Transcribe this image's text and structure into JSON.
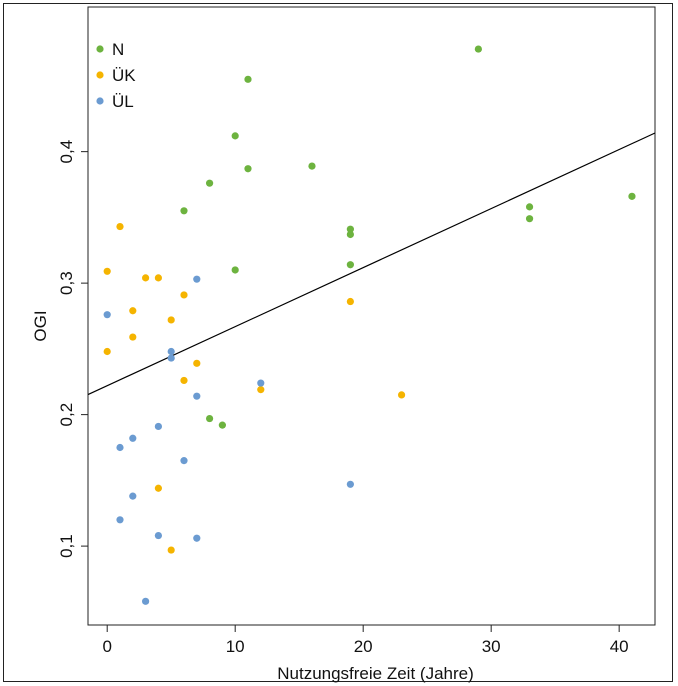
{
  "chart_data": {
    "type": "scatter",
    "title": "",
    "xlabel": "Nutzungsfreie Zeit (Jahre)",
    "ylabel": "OGI",
    "xlim": [
      -1.5,
      42.8
    ],
    "ylim": [
      0.04,
      0.51
    ],
    "x_ticks": [
      0,
      10,
      20,
      30,
      40
    ],
    "x_tick_labels": [
      "0",
      "10",
      "20",
      "30",
      "40"
    ],
    "y_ticks": [
      0.1,
      0.2,
      0.3,
      0.4
    ],
    "y_tick_labels": [
      "0,1",
      "0,2",
      "0,3",
      "0,4"
    ],
    "legend_position": "top-left",
    "grid": false,
    "series": [
      {
        "name": "N",
        "color": "#6db33f",
        "points": [
          [
            6,
            0.355
          ],
          [
            8,
            0.376
          ],
          [
            8,
            0.197
          ],
          [
            9,
            0.192
          ],
          [
            10,
            0.412
          ],
          [
            10,
            0.31
          ],
          [
            11,
            0.455
          ],
          [
            11,
            0.387
          ],
          [
            16,
            0.389
          ],
          [
            19,
            0.341
          ],
          [
            19,
            0.337
          ],
          [
            19,
            0.314
          ],
          [
            29,
            0.478
          ],
          [
            33,
            0.358
          ],
          [
            33,
            0.349
          ],
          [
            41,
            0.366
          ]
        ]
      },
      {
        "name": "ÜK",
        "color": "#f5b400",
        "points": [
          [
            0,
            0.309
          ],
          [
            0,
            0.248
          ],
          [
            1,
            0.343
          ],
          [
            2,
            0.279
          ],
          [
            2,
            0.259
          ],
          [
            3,
            0.304
          ],
          [
            4,
            0.304
          ],
          [
            4,
            0.144
          ],
          [
            5,
            0.272
          ],
          [
            5,
            0.097
          ],
          [
            6,
            0.291
          ],
          [
            6,
            0.226
          ],
          [
            7,
            0.239
          ],
          [
            12,
            0.219
          ],
          [
            19,
            0.286
          ],
          [
            23,
            0.215
          ]
        ]
      },
      {
        "name": "ÜL",
        "color": "#6b9bd1",
        "points": [
          [
            0,
            0.276
          ],
          [
            1,
            0.175
          ],
          [
            1,
            0.12
          ],
          [
            2,
            0.182
          ],
          [
            2,
            0.138
          ],
          [
            3,
            0.058
          ],
          [
            4,
            0.191
          ],
          [
            4,
            0.108
          ],
          [
            5,
            0.248
          ],
          [
            5,
            0.243
          ],
          [
            6,
            0.165
          ],
          [
            7,
            0.303
          ],
          [
            7,
            0.214
          ],
          [
            7,
            0.106
          ],
          [
            12,
            0.224
          ],
          [
            19,
            0.147
          ]
        ]
      }
    ],
    "regression_line": {
      "intercept": 0.222,
      "slope": 0.00449,
      "color": "#000000"
    }
  }
}
